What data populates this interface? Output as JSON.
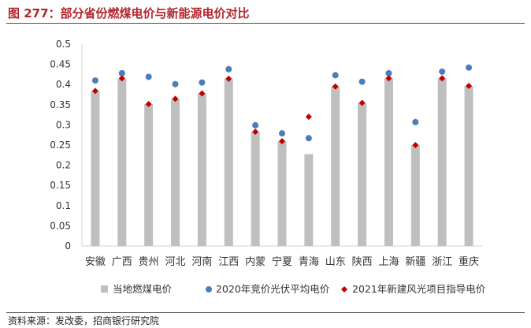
{
  "header": {
    "title": "图 277：部分省份燃煤电价与新能源电价对比"
  },
  "footer": {
    "source": "资料来源：发改委，招商银行研究院"
  },
  "colors": {
    "title": "#b3262d",
    "bar": "#bfbfbf",
    "dot": "#4a7ebb",
    "diamond": "#c00000"
  },
  "chart_data": {
    "type": "bar",
    "title": "",
    "xlabel": "",
    "ylabel": "",
    "ylim": [
      0,
      0.5
    ],
    "yticks": [
      "0",
      "0.05",
      "0.1",
      "0.15",
      "0.2",
      "0.25",
      "0.3",
      "0.35",
      "0.4",
      "0.45",
      "0.5"
    ],
    "grid": false,
    "legend_position": "bottom",
    "categories": [
      "安徽",
      "广西",
      "贵州",
      "河北",
      "河南",
      "江西",
      "内蒙",
      "宁夏",
      "青海",
      "山东",
      "陕西",
      "上海",
      "新疆",
      "浙江",
      "重庆"
    ],
    "series": [
      {
        "name": "当地燃煤电价",
        "type": "bar",
        "marker": "square",
        "color": "#bfbfbf",
        "values": [
          0.384,
          0.4153,
          0.3515,
          0.3644,
          0.3779,
          0.4143,
          0.2829,
          0.2595,
          0.2277,
          0.3949,
          0.3545,
          0.4155,
          0.25,
          0.4153,
          0.3964
        ]
      },
      {
        "name": "2020年竞价光伏平均电价",
        "type": "scatter",
        "marker": "circle",
        "color": "#4a7ebb",
        "values": [
          0.41,
          0.428,
          0.419,
          0.401,
          0.405,
          0.438,
          0.299,
          0.279,
          0.267,
          0.423,
          0.407,
          0.428,
          0.307,
          0.432,
          0.442
        ]
      },
      {
        "name": "2021年新建风光项目指导电价",
        "type": "scatter",
        "marker": "diamond",
        "color": "#c00000",
        "values": [
          0.384,
          0.4153,
          0.3515,
          0.3644,
          0.3779,
          0.4143,
          0.2829,
          0.2595,
          0.32,
          0.3949,
          0.3545,
          0.4155,
          0.25,
          0.4153,
          0.3964
        ]
      }
    ]
  }
}
